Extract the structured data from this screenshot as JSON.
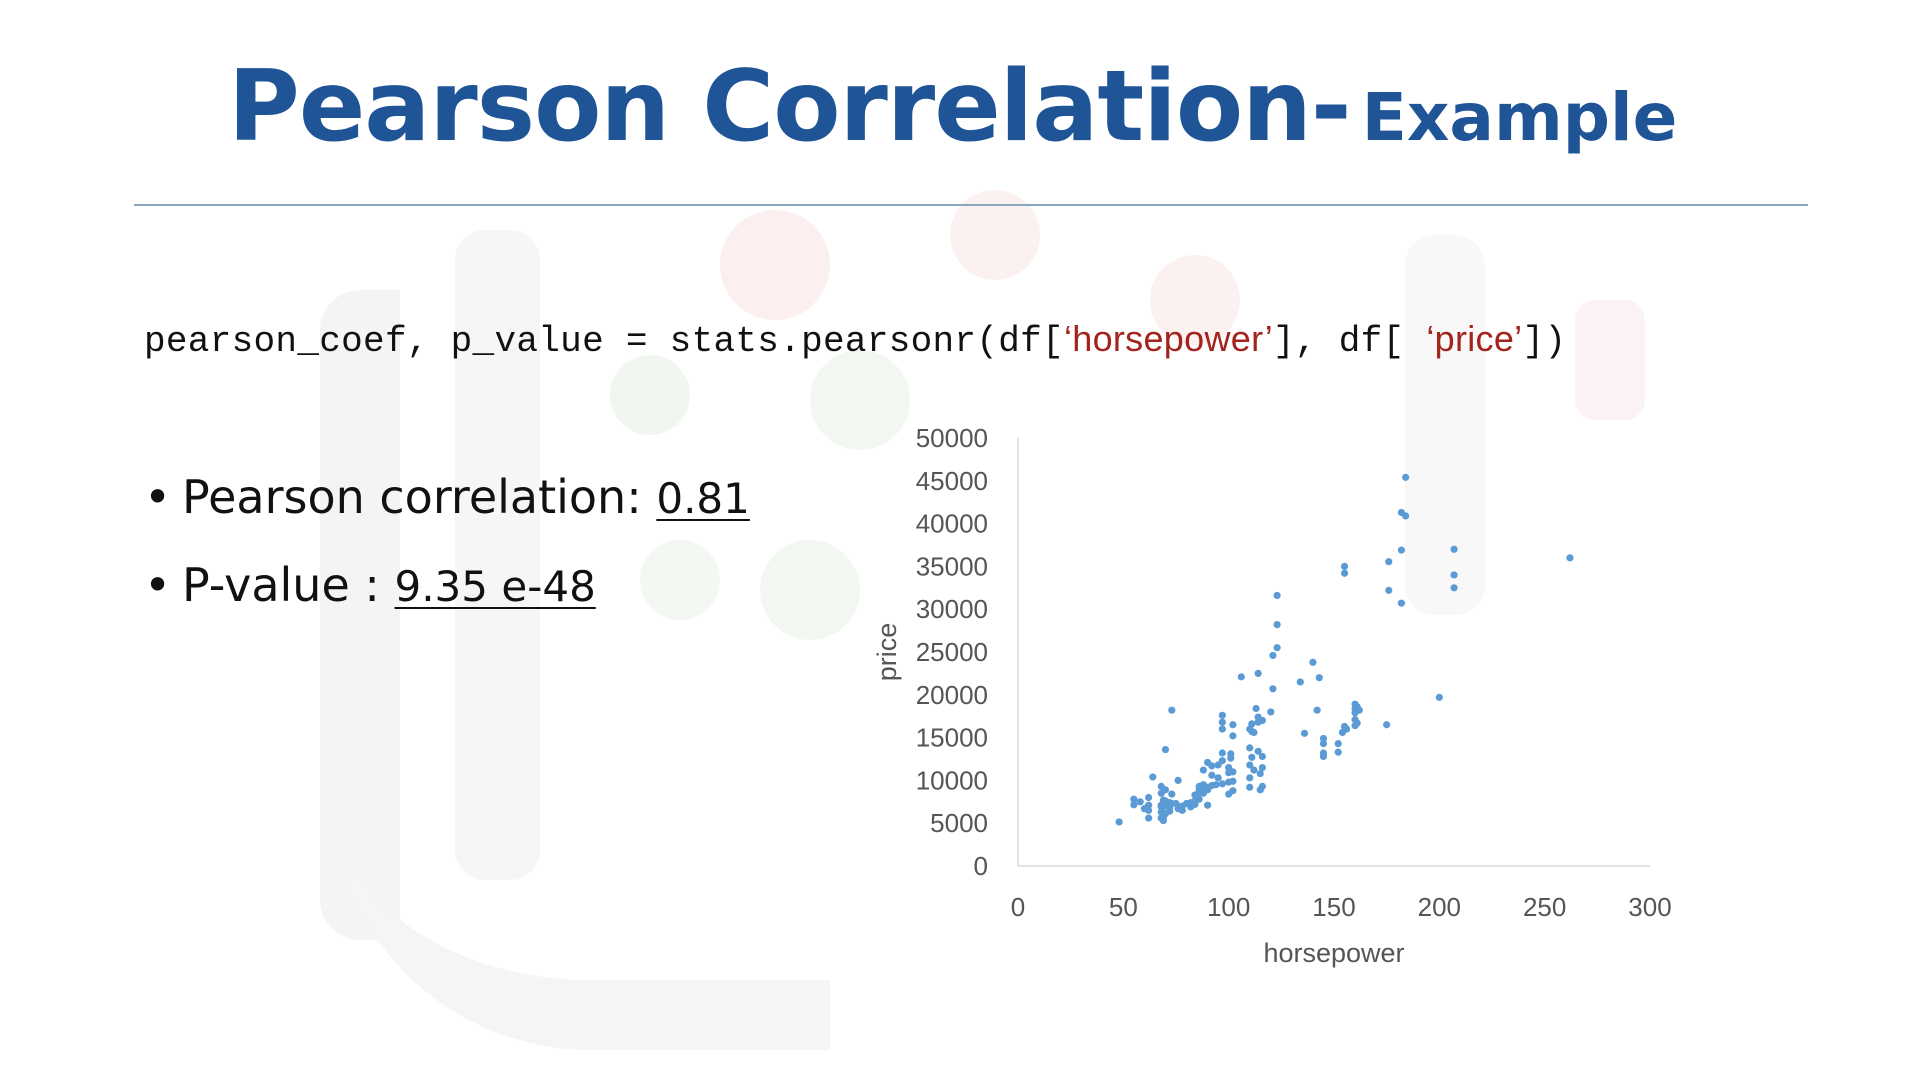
{
  "slide": {
    "title_main": "Pearson Correlation-",
    "title_sub": "Example"
  },
  "code": {
    "prefix": "pearson_coef, p_value = stats.pearsonr(df[",
    "arg1": "‘horsepower’",
    "middle": "], df[ ",
    "arg2": "‘price’",
    "suffix": "])"
  },
  "bullets": [
    {
      "bullet": "•",
      "label": "Pearson correlation: ",
      "value": "0.81"
    },
    {
      "bullet": "•",
      "label": "P-value : ",
      "value": "9.35 e-48"
    }
  ],
  "colors": {
    "title": "#1f5497",
    "string": "#a3231d",
    "points": "#5b9bd5",
    "axis": "#d9d9d9"
  },
  "chart_data": {
    "type": "scatter",
    "xlabel": "horsepower",
    "ylabel": "price",
    "xlim": [
      0,
      300
    ],
    "ylim": [
      0,
      50000
    ],
    "xticks": [
      0,
      50,
      100,
      150,
      200,
      250,
      300
    ],
    "yticks": [
      0,
      5000,
      10000,
      15000,
      20000,
      25000,
      30000,
      35000,
      40000,
      45000,
      50000
    ],
    "grid": false,
    "legend": "none",
    "points": [
      [
        48,
        5150
      ],
      [
        55,
        7150
      ],
      [
        55,
        7800
      ],
      [
        58,
        7500
      ],
      [
        60,
        6700
      ],
      [
        62,
        6500
      ],
      [
        62,
        7100
      ],
      [
        62,
        8000
      ],
      [
        62,
        5600
      ],
      [
        64,
        10400
      ],
      [
        68,
        6300
      ],
      [
        68,
        7100
      ],
      [
        68,
        5600
      ],
      [
        68,
        6900
      ],
      [
        68,
        8500
      ],
      [
        68,
        9300
      ],
      [
        69,
        7700
      ],
      [
        69,
        6200
      ],
      [
        69,
        5300
      ],
      [
        69,
        5500
      ],
      [
        70,
        6100
      ],
      [
        70,
        7600
      ],
      [
        70,
        7000
      ],
      [
        70,
        13600
      ],
      [
        70,
        8900
      ],
      [
        72,
        6400
      ],
      [
        72,
        6800
      ],
      [
        72,
        7400
      ],
      [
        73,
        18200
      ],
      [
        73,
        7300
      ],
      [
        73,
        8400
      ],
      [
        75,
        7300
      ],
      [
        76,
        6700
      ],
      [
        76,
        10000
      ],
      [
        78,
        6500
      ],
      [
        78,
        7000
      ],
      [
        80,
        7300
      ],
      [
        82,
        6900
      ],
      [
        82,
        7400
      ],
      [
        84,
        7200
      ],
      [
        84,
        7600
      ],
      [
        84,
        8300
      ],
      [
        85,
        8200
      ],
      [
        86,
        7800
      ],
      [
        86,
        8900
      ],
      [
        86,
        9300
      ],
      [
        88,
        8700
      ],
      [
        88,
        9500
      ],
      [
        88,
        8500
      ],
      [
        88,
        11200
      ],
      [
        90,
        7100
      ],
      [
        90,
        8900
      ],
      [
        90,
        9200
      ],
      [
        90,
        12100
      ],
      [
        92,
        9400
      ],
      [
        92,
        10600
      ],
      [
        92,
        11700
      ],
      [
        94,
        9500
      ],
      [
        95,
        10300
      ],
      [
        95,
        11800
      ],
      [
        97,
        9600
      ],
      [
        97,
        12300
      ],
      [
        97,
        13200
      ],
      [
        97,
        16800
      ],
      [
        97,
        17600
      ],
      [
        97,
        16000
      ],
      [
        100,
        8400
      ],
      [
        100,
        9800
      ],
      [
        100,
        10900
      ],
      [
        100,
        11500
      ],
      [
        101,
        12600
      ],
      [
        101,
        13100
      ],
      [
        102,
        8800
      ],
      [
        102,
        9900
      ],
      [
        102,
        15200
      ],
      [
        102,
        16500
      ],
      [
        102,
        11000
      ],
      [
        106,
        22100
      ],
      [
        110,
        9200
      ],
      [
        110,
        10300
      ],
      [
        110,
        11800
      ],
      [
        110,
        13800
      ],
      [
        110,
        16000
      ],
      [
        111,
        12700
      ],
      [
        111,
        15700
      ],
      [
        111,
        16600
      ],
      [
        112,
        11200
      ],
      [
        112,
        15600
      ],
      [
        113,
        18400
      ],
      [
        114,
        13400
      ],
      [
        114,
        16800
      ],
      [
        114,
        17400
      ],
      [
        114,
        22500
      ],
      [
        115,
        8900
      ],
      [
        115,
        10800
      ],
      [
        116,
        9300
      ],
      [
        116,
        11500
      ],
      [
        116,
        12800
      ],
      [
        116,
        17000
      ],
      [
        120,
        18000
      ],
      [
        121,
        20700
      ],
      [
        121,
        24600
      ],
      [
        123,
        25500
      ],
      [
        123,
        28200
      ],
      [
        123,
        31600
      ],
      [
        134,
        21500
      ],
      [
        136,
        15500
      ],
      [
        140,
        23800
      ],
      [
        142,
        18200
      ],
      [
        143,
        22000
      ],
      [
        145,
        12800
      ],
      [
        145,
        13200
      ],
      [
        145,
        14300
      ],
      [
        145,
        14900
      ],
      [
        152,
        13300
      ],
      [
        152,
        14300
      ],
      [
        154,
        15600
      ],
      [
        155,
        16300
      ],
      [
        155,
        34200
      ],
      [
        155,
        35000
      ],
      [
        156,
        16000
      ],
      [
        160,
        16400
      ],
      [
        160,
        17100
      ],
      [
        160,
        17900
      ],
      [
        160,
        18400
      ],
      [
        160,
        18900
      ],
      [
        161,
        16700
      ],
      [
        161,
        18600
      ],
      [
        162,
        18200
      ],
      [
        175,
        16500
      ],
      [
        176,
        32200
      ],
      [
        176,
        35550
      ],
      [
        182,
        36900
      ],
      [
        182,
        30700
      ],
      [
        182,
        41300
      ],
      [
        184,
        40900
      ],
      [
        184,
        45400
      ],
      [
        200,
        19700
      ],
      [
        207,
        34000
      ],
      [
        207,
        37000
      ],
      [
        207,
        32500
      ],
      [
        262,
        36000
      ]
    ]
  }
}
